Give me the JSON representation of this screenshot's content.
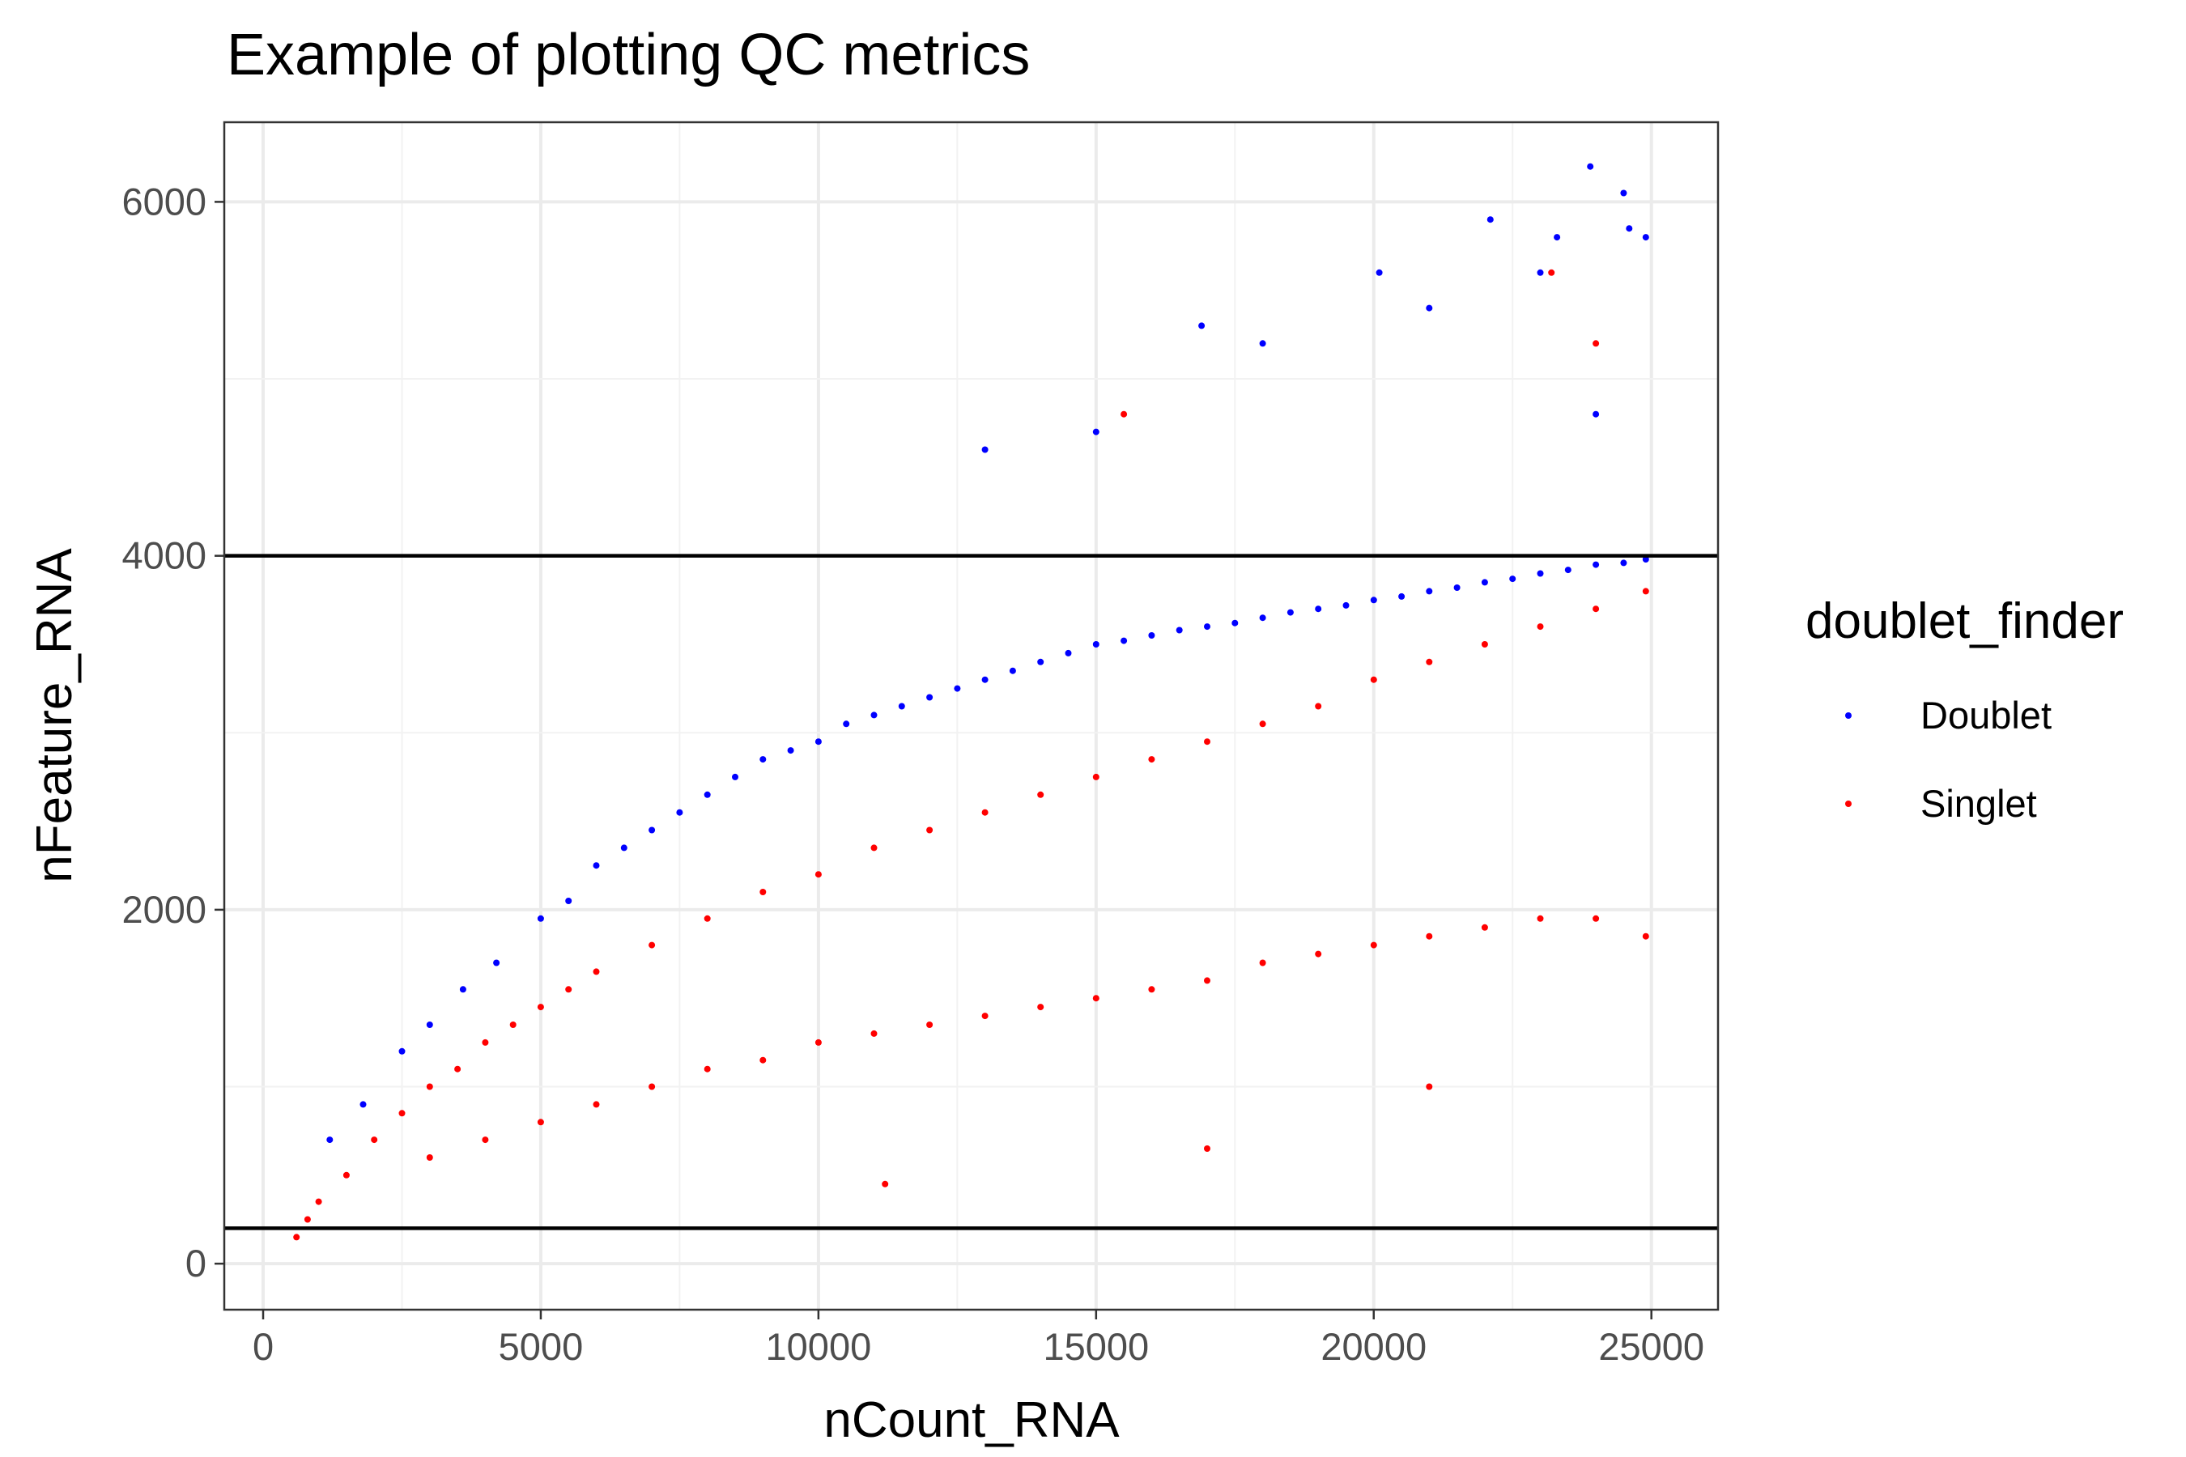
{
  "chart_data": {
    "type": "scatter",
    "title": "Example of plotting QC metrics",
    "xlabel": "nCount_RNA",
    "ylabel": "nFeature_RNA",
    "xlim": [
      -700,
      26200
    ],
    "ylim": [
      -260,
      6450
    ],
    "x_ticks": [
      0,
      5000,
      10000,
      15000,
      20000,
      25000
    ],
    "x_tick_labels": [
      "0",
      "5000",
      "10000",
      "15000",
      "20000",
      "25000"
    ],
    "y_ticks": [
      0,
      2000,
      4000,
      6000
    ],
    "y_tick_labels": [
      "0",
      "2000",
      "4000",
      "6000"
    ],
    "grid": true,
    "legend": {
      "title": "doublet_finder",
      "placement": "right",
      "entries": [
        "Doublet",
        "Singlet"
      ]
    },
    "hlines": [
      200,
      4000
    ],
    "series": [
      {
        "name": "Doublet",
        "color": "#0000ff",
        "points": [
          [
            1200,
            700
          ],
          [
            1800,
            900
          ],
          [
            2500,
            1200
          ],
          [
            3000,
            1350
          ],
          [
            3600,
            1550
          ],
          [
            4200,
            1700
          ],
          [
            5000,
            1950
          ],
          [
            5500,
            2050
          ],
          [
            6000,
            2250
          ],
          [
            6500,
            2350
          ],
          [
            7000,
            2450
          ],
          [
            7500,
            2550
          ],
          [
            8000,
            2650
          ],
          [
            8500,
            2750
          ],
          [
            9000,
            2850
          ],
          [
            9500,
            2900
          ],
          [
            10000,
            2950
          ],
          [
            10500,
            3050
          ],
          [
            11000,
            3100
          ],
          [
            11500,
            3150
          ],
          [
            12000,
            3200
          ],
          [
            12500,
            3250
          ],
          [
            13000,
            3300
          ],
          [
            13500,
            3350
          ],
          [
            14000,
            3400
          ],
          [
            14500,
            3450
          ],
          [
            15000,
            3500
          ],
          [
            15500,
            3520
          ],
          [
            16000,
            3550
          ],
          [
            16500,
            3580
          ],
          [
            17000,
            3600
          ],
          [
            17500,
            3620
          ],
          [
            18000,
            3650
          ],
          [
            18500,
            3680
          ],
          [
            19000,
            3700
          ],
          [
            19500,
            3720
          ],
          [
            20000,
            3750
          ],
          [
            20500,
            3770
          ],
          [
            21000,
            3800
          ],
          [
            21500,
            3820
          ],
          [
            22000,
            3850
          ],
          [
            22500,
            3870
          ],
          [
            23000,
            3900
          ],
          [
            23500,
            3920
          ],
          [
            24000,
            3950
          ],
          [
            24500,
            3960
          ],
          [
            24900,
            3980
          ],
          [
            13000,
            4600
          ],
          [
            16900,
            5300
          ],
          [
            20100,
            5600
          ],
          [
            22100,
            5900
          ],
          [
            23300,
            5800
          ],
          [
            23900,
            6200
          ],
          [
            24500,
            6050
          ],
          [
            24600,
            5850
          ],
          [
            24900,
            5800
          ],
          [
            15000,
            4700
          ],
          [
            18000,
            5200
          ],
          [
            21000,
            5400
          ],
          [
            23000,
            5600
          ],
          [
            24000,
            4800
          ]
        ]
      },
      {
        "name": "Singlet",
        "color": "#ff0000",
        "points": [
          [
            600,
            150
          ],
          [
            800,
            250
          ],
          [
            1000,
            350
          ],
          [
            1500,
            500
          ],
          [
            2000,
            700
          ],
          [
            2500,
            850
          ],
          [
            3000,
            1000
          ],
          [
            3500,
            1100
          ],
          [
            4000,
            1250
          ],
          [
            4500,
            1350
          ],
          [
            5000,
            1450
          ],
          [
            5500,
            1550
          ],
          [
            6000,
            1650
          ],
          [
            7000,
            1800
          ],
          [
            8000,
            1950
          ],
          [
            9000,
            2100
          ],
          [
            10000,
            2200
          ],
          [
            11000,
            2350
          ],
          [
            12000,
            2450
          ],
          [
            13000,
            2550
          ],
          [
            14000,
            2650
          ],
          [
            15000,
            2750
          ],
          [
            16000,
            2850
          ],
          [
            17000,
            2950
          ],
          [
            18000,
            3050
          ],
          [
            19000,
            3150
          ],
          [
            20000,
            3300
          ],
          [
            21000,
            3400
          ],
          [
            22000,
            3500
          ],
          [
            23000,
            3600
          ],
          [
            24000,
            3700
          ],
          [
            24900,
            3800
          ],
          [
            3000,
            600
          ],
          [
            4000,
            700
          ],
          [
            5000,
            800
          ],
          [
            6000,
            900
          ],
          [
            7000,
            1000
          ],
          [
            8000,
            1100
          ],
          [
            9000,
            1150
          ],
          [
            10000,
            1250
          ],
          [
            11000,
            1300
          ],
          [
            12000,
            1350
          ],
          [
            13000,
            1400
          ],
          [
            14000,
            1450
          ],
          [
            15000,
            1500
          ],
          [
            16000,
            1550
          ],
          [
            17000,
            1600
          ],
          [
            18000,
            1700
          ],
          [
            19000,
            1750
          ],
          [
            20000,
            1800
          ],
          [
            21000,
            1850
          ],
          [
            22000,
            1900
          ],
          [
            23000,
            1950
          ],
          [
            24000,
            1950
          ],
          [
            24900,
            1850
          ],
          [
            11200,
            450
          ],
          [
            17000,
            650
          ],
          [
            21000,
            1000
          ],
          [
            24000,
            5200
          ],
          [
            15500,
            4800
          ],
          [
            23200,
            5600
          ]
        ]
      }
    ]
  }
}
